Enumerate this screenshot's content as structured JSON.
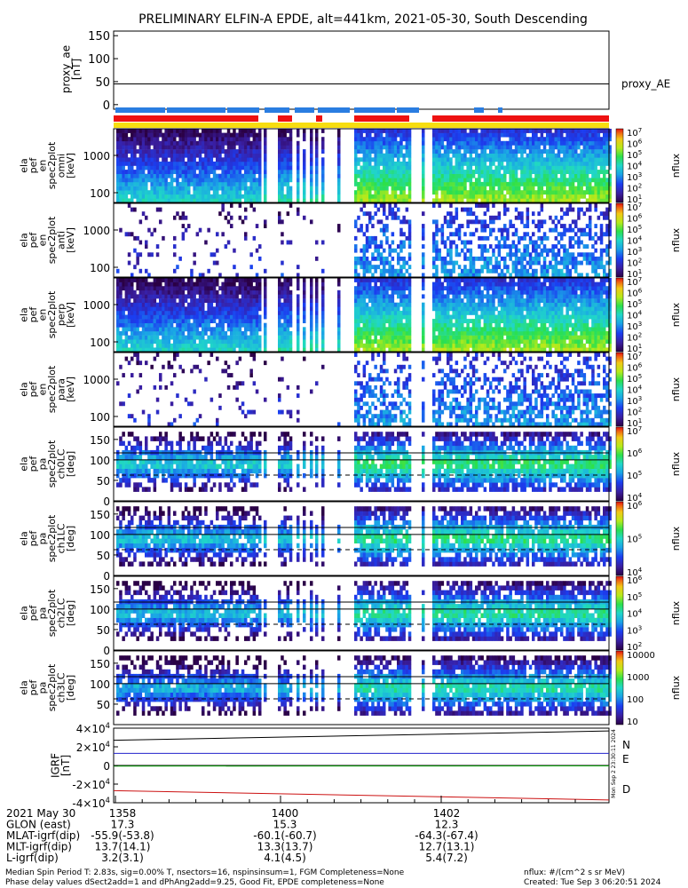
{
  "title": "PRELIMINARY ELFIN-A EPDE, alt=441km, 2021-05-30, South Descending",
  "colors": {
    "sci_zones_blue": "#2a7de1",
    "red_bar": "#ee1111",
    "yellow_bar": "#f7dd10",
    "igrf_n": "#2222cc",
    "igrf_e": "#11aa11",
    "igrf_d": "#cc1111"
  },
  "panels": {
    "proxy_ae": {
      "ylabel_lines": [
        "proxy_ae",
        "[nT]"
      ],
      "yticks": [
        "150",
        "100",
        "50",
        "0"
      ],
      "legend": "proxy_AE"
    },
    "spectra": [
      {
        "ylabel_lines": [
          "ela",
          "pef",
          "en",
          "spec2plot",
          "omni",
          "[keV]"
        ],
        "yticks": [
          "1000",
          "100"
        ],
        "cbar_ticks": [
          "10^7",
          "10^6",
          "10^5",
          "10^4",
          "10^3",
          "10^2",
          "10^1"
        ],
        "cbar_label": "nflux"
      },
      {
        "ylabel_lines": [
          "ela",
          "pef",
          "en",
          "spec2plot",
          "anti",
          "[keV]"
        ],
        "yticks": [
          "1000",
          "100"
        ],
        "cbar_ticks": [
          "10^7",
          "10^6",
          "10^5",
          "10^4",
          "10^3",
          "10^2",
          "10^1"
        ],
        "cbar_label": "nflux"
      },
      {
        "ylabel_lines": [
          "ela",
          "pef",
          "en",
          "spec2plot",
          "perp",
          "[keV]"
        ],
        "yticks": [
          "1000",
          "100"
        ],
        "cbar_ticks": [
          "10^7",
          "10^6",
          "10^5",
          "10^4",
          "10^3",
          "10^2",
          "10^1"
        ],
        "cbar_label": "nflux"
      },
      {
        "ylabel_lines": [
          "ela",
          "pef",
          "en",
          "spec2plot",
          "para",
          "[keV]"
        ],
        "yticks": [
          "1000",
          "100"
        ],
        "cbar_ticks": [
          "10^7",
          "10^6",
          "10^5",
          "10^4",
          "10^3",
          "10^2",
          "10^1"
        ],
        "cbar_label": "nflux"
      }
    ],
    "pitch": [
      {
        "ylabel_lines": [
          "ela",
          "pef",
          "pa",
          "spec2plot",
          "ch0LC",
          "[deg]"
        ],
        "yticks": [
          "150",
          "100",
          "50",
          "0"
        ],
        "cbar_ticks": [
          "10^7",
          "10^6",
          "10^5",
          "10^4"
        ],
        "cbar_label": "nflux"
      },
      {
        "ylabel_lines": [
          "ela",
          "pef",
          "pa",
          "spec2plot",
          "ch1LC",
          "[deg]"
        ],
        "yticks": [
          "150",
          "100",
          "50",
          "0"
        ],
        "cbar_ticks": [
          "10^6",
          "10^5",
          "10^4"
        ],
        "cbar_label": "nflux"
      },
      {
        "ylabel_lines": [
          "ela",
          "pef",
          "pa",
          "spec2plot",
          "ch2LC",
          "[deg]"
        ],
        "yticks": [
          "150",
          "100",
          "50",
          "0"
        ],
        "cbar_ticks": [
          "10^6",
          "10^5",
          "10^4",
          "10^3",
          "10^2"
        ],
        "cbar_label": "nflux"
      },
      {
        "ylabel_lines": [
          "ela",
          "pef",
          "pa",
          "spec2plot",
          "ch3LC",
          "[deg]"
        ],
        "yticks": [
          "150",
          "100",
          "50"
        ],
        "cbar_ticks": [
          "10000",
          "1000",
          "100",
          "10"
        ],
        "cbar_label": "nflux"
      }
    ],
    "igrf": {
      "ylabel_lines": [
        "IGRF",
        "[nT]"
      ],
      "yticks": [
        "4×10^4",
        "2×10^4",
        "0",
        "-2×10^4",
        "-4×10^4"
      ],
      "legend": [
        "N",
        "E",
        "D"
      ],
      "side_stamp": "Mon Sep  2 23:30:11 2024"
    }
  },
  "chart_data": [
    {
      "type": "line",
      "title": "PRELIMINARY ELFIN-A EPDE, alt=441km, 2021-05-30, South Descending",
      "ylabel": "proxy_ae [nT]",
      "ylim": [
        -10,
        160
      ],
      "series": [
        {
          "name": "proxy_AE",
          "x": [
            "13:57",
            "14:04"
          ],
          "values": [
            45,
            45
          ]
        }
      ]
    },
    {
      "type": "heatmap",
      "ylabel": "ela pef en spec2plot omni [keV]",
      "yscale": "log",
      "ylim": [
        60,
        7000
      ],
      "zlabel": "nflux",
      "zlim": [
        10,
        10000000
      ],
      "note_free": false
    },
    {
      "type": "heatmap",
      "ylabel": "ela pef en spec2plot anti [keV]",
      "yscale": "log",
      "ylim": [
        60,
        7000
      ],
      "zlabel": "nflux",
      "zlim": [
        10,
        10000000
      ]
    },
    {
      "type": "heatmap",
      "ylabel": "ela pef en spec2plot perp [keV]",
      "yscale": "log",
      "ylim": [
        60,
        7000
      ],
      "zlabel": "nflux",
      "zlim": [
        10,
        10000000
      ]
    },
    {
      "type": "heatmap",
      "ylabel": "ela pef en spec2plot para [keV]",
      "yscale": "log",
      "ylim": [
        60,
        7000
      ],
      "zlabel": "nflux",
      "zlim": [
        10,
        10000000
      ]
    },
    {
      "type": "heatmap",
      "ylabel": "ela pef pa spec2plot ch0LC [deg]",
      "ylim": [
        0,
        180
      ],
      "zlabel": "nflux",
      "zlim": [
        1000,
        10000000
      ]
    },
    {
      "type": "heatmap",
      "ylabel": "ela pef pa spec2plot ch1LC [deg]",
      "ylim": [
        0,
        180
      ],
      "zlabel": "nflux",
      "zlim": [
        1000,
        1000000
      ]
    },
    {
      "type": "heatmap",
      "ylabel": "ela pef pa spec2plot ch2LC [deg]",
      "ylim": [
        0,
        180
      ],
      "zlabel": "nflux",
      "zlim": [
        100,
        1000000
      ]
    },
    {
      "type": "heatmap",
      "ylabel": "ela pef pa spec2plot ch3LC [deg]",
      "ylim": [
        0,
        180
      ],
      "zlabel": "nflux",
      "zlim": [
        10,
        10000
      ]
    },
    {
      "type": "line",
      "ylabel": "IGRF [nT]",
      "ylim": [
        -40000,
        40000
      ],
      "series": [
        {
          "name": "N",
          "x": [
            "13:57",
            "14:04"
          ],
          "values": [
            27000,
            37000
          ]
        },
        {
          "name": "E",
          "x": [
            "13:57",
            "14:04"
          ],
          "values": [
            13000,
            13000
          ]
        },
        {
          "name": "E",
          "x": [
            "13:57",
            "14:04"
          ],
          "values": [
            -700,
            -500
          ]
        },
        {
          "name": "D",
          "x": [
            "13:57",
            "14:04"
          ],
          "values": [
            -27000,
            -37000
          ]
        }
      ]
    }
  ],
  "footer": {
    "rows": [
      {
        "label": "2021 May 30",
        "values": [
          "1358",
          "1400",
          "1402"
        ]
      },
      {
        "label": "GLON (east)",
        "values": [
          "17.3",
          "15.3",
          "12.3"
        ]
      },
      {
        "label": "MLAT-igrf(dip)",
        "values": [
          "-55.9(-53.8)",
          "-60.1(-60.7)",
          "-64.3(-67.4)"
        ]
      },
      {
        "label": "MLT-igrf(dip)",
        "values": [
          "13.7(14.1)",
          "13.3(13.7)",
          "12.7(13.1)"
        ]
      },
      {
        "label": "L-igrf(dip)",
        "values": [
          "3.2(3.1)",
          "4.1(4.5)",
          "5.4(7.2)"
        ]
      }
    ],
    "note1": "Median Spin Period T: 2.83s, sig=0.00% T, nsectors=16, nspinsinsum=1, FGM Completeness=None",
    "note2": "Phase delay values dSect2add=1 and dPhAng2add=9.25, Good Fit, EPDE completeness=None",
    "units": "nflux: #/(cm^2 s sr MeV)",
    "created": "Created: Tue Sep  3 06:20:51 2024"
  }
}
